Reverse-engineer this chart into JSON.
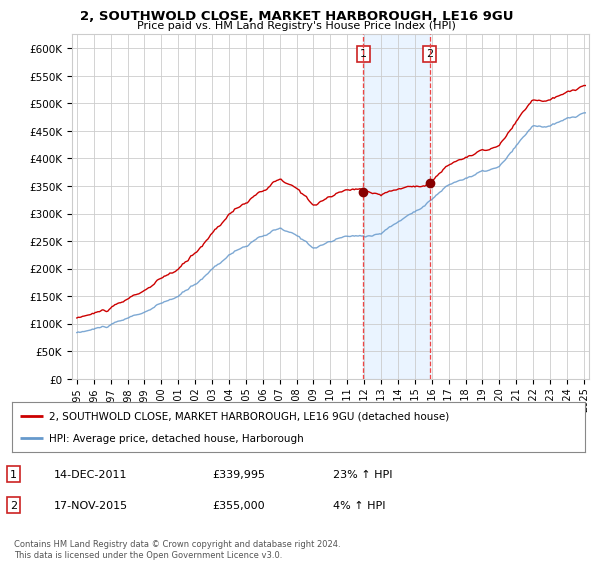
{
  "title": "2, SOUTHWOLD CLOSE, MARKET HARBOROUGH, LE16 9GU",
  "subtitle": "Price paid vs. HM Land Registry's House Price Index (HPI)",
  "ylabel_ticks": [
    "£0",
    "£50K",
    "£100K",
    "£150K",
    "£200K",
    "£250K",
    "£300K",
    "£350K",
    "£400K",
    "£450K",
    "£500K",
    "£550K",
    "£600K"
  ],
  "ytick_values": [
    0,
    50000,
    100000,
    150000,
    200000,
    250000,
    300000,
    350000,
    400000,
    450000,
    500000,
    550000,
    600000
  ],
  "legend_line1": "2, SOUTHWOLD CLOSE, MARKET HARBOROUGH, LE16 9GU (detached house)",
  "legend_line2": "HPI: Average price, detached house, Harborough",
  "annotation1_date": "14-DEC-2011",
  "annotation1_price": "£339,995",
  "annotation1_hpi": "23% ↑ HPI",
  "annotation2_date": "17-NOV-2015",
  "annotation2_price": "£355,000",
  "annotation2_hpi": "4% ↑ HPI",
  "footer": "Contains HM Land Registry data © Crown copyright and database right 2024.\nThis data is licensed under the Open Government Licence v3.0.",
  "sale1_year": 2011.958,
  "sale1_value": 339995,
  "sale2_year": 2015.875,
  "sale2_value": 355000,
  "line_color_property": "#cc0000",
  "line_color_hpi": "#6699cc",
  "shade_color": "#ddeeff",
  "vline_color": "#ee4444",
  "background_color": "#ffffff",
  "grid_color": "#cccccc"
}
